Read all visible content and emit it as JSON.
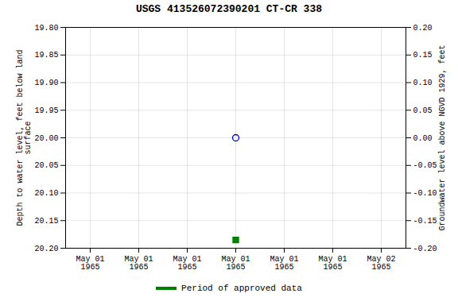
{
  "chart_data": {
    "type": "scatter",
    "title": "USGS 413526072390201  CT-CR   338",
    "ylabel": "Depth to water level, feet below land\nsurface",
    "y2label": "Groundwater level above NGVD 1929, feet",
    "categories": [
      "May 01\n1965",
      "May 01\n1965",
      "May 01\n1965",
      "May 01\n1965",
      "May 01\n1965",
      "May 01\n1965",
      "May 02\n1965"
    ],
    "series": [
      {
        "color": "#0000cc",
        "marker": "open_circle",
        "values": [
          null,
          null,
          null,
          20.0,
          null,
          null,
          null
        ]
      },
      {
        "name": "Period of approved data",
        "color": "#008000",
        "marker": "square",
        "values": [
          null,
          null,
          null,
          20.185,
          null,
          null,
          null
        ]
      }
    ],
    "ylim": [
      20.2,
      19.8
    ],
    "yticks": [
      {
        "value": 19.8,
        "label": "19.80"
      },
      19.85,
      {
        "value": 19.9,
        "label": "19.90"
      },
      19.95,
      {
        "value": 20.0,
        "label": "20.00"
      },
      20.05,
      {
        "value": 20.1,
        "label": "20.10"
      },
      20.15,
      {
        "value": 20.2,
        "label": "20.20"
      }
    ],
    "y2lim": [
      -0.2,
      0.2
    ],
    "y2ticks": [
      {
        "value": 0.2,
        "label": "0.20"
      },
      0.15,
      {
        "value": 0.1,
        "label": "0.10"
      },
      0.05,
      {
        "value": 0.0,
        "label": "0.00"
      },
      -0.05,
      {
        "value": -0.1,
        "label": "-0.10"
      },
      -0.15,
      {
        "value": -0.2,
        "label": "-0.20"
      }
    ],
    "grid": true,
    "legend": "bottom"
  }
}
